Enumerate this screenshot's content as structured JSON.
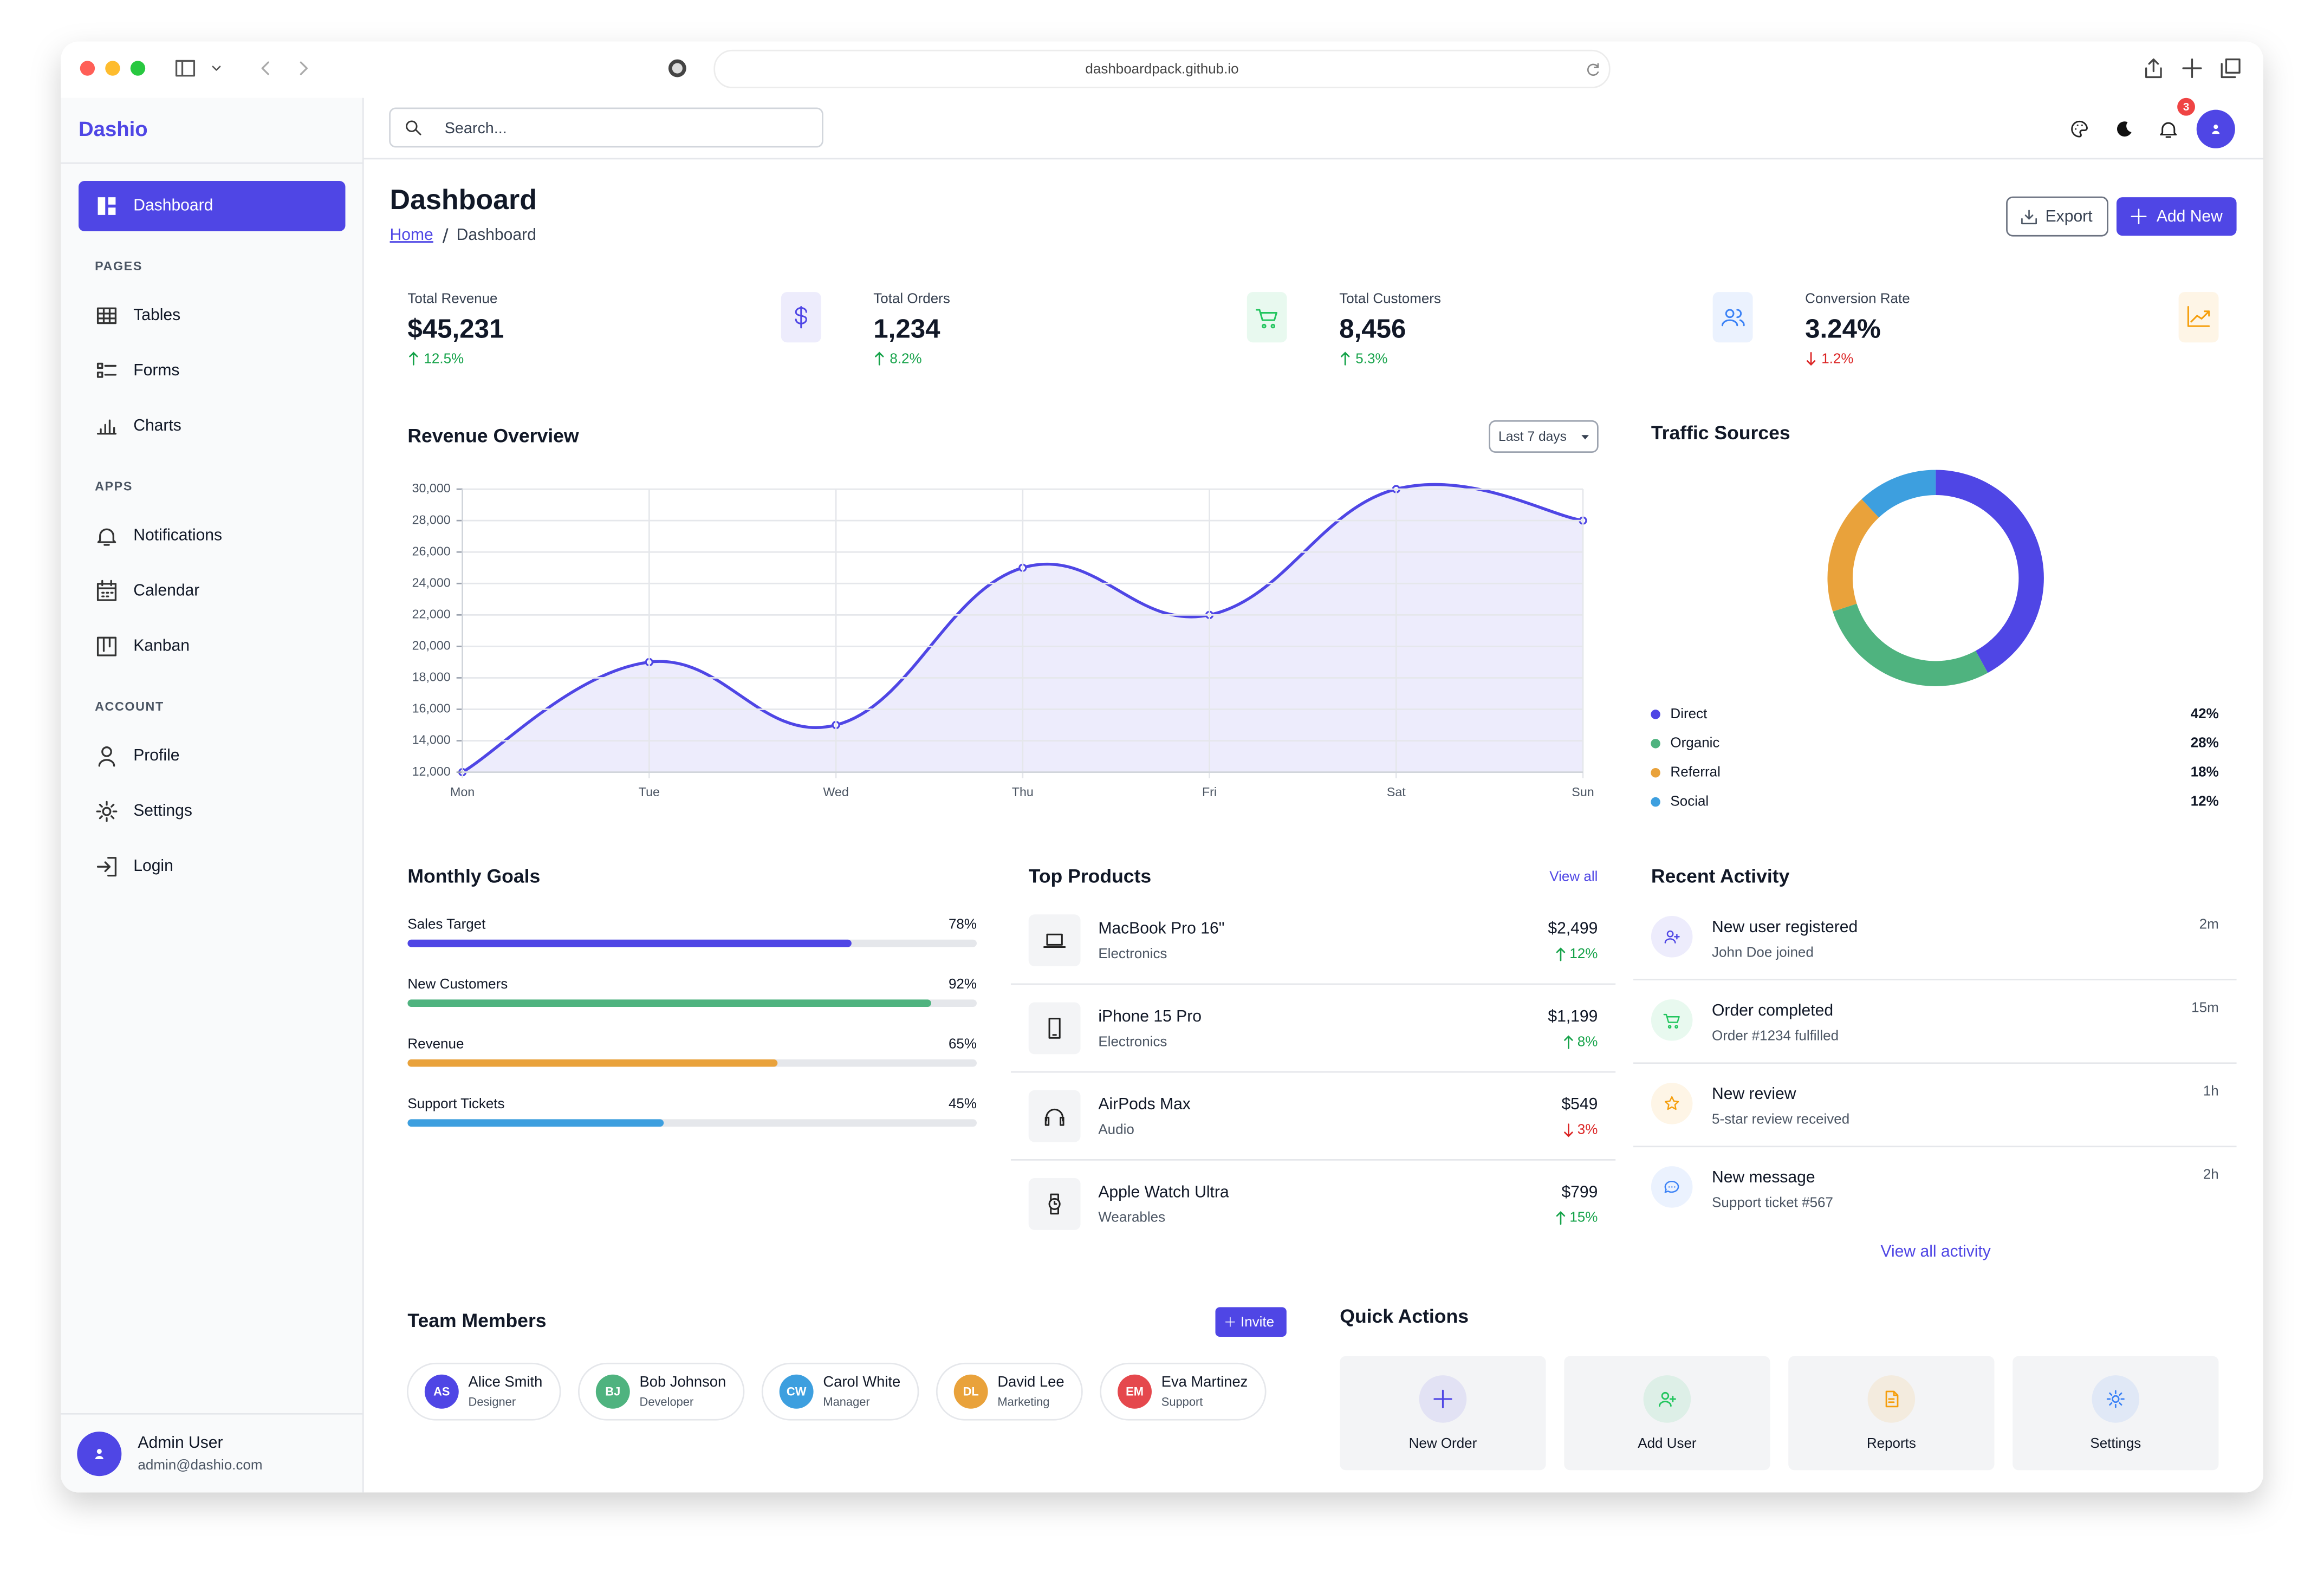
{
  "browser": {
    "url": "dashboardpack.github.io"
  },
  "sidebar": {
    "brand": "Dashio",
    "sections": [
      {
        "items": [
          "Dashboard"
        ]
      },
      {
        "label": "PAGES",
        "items": [
          "Tables",
          "Forms",
          "Charts"
        ]
      },
      {
        "label": "APPS",
        "items": [
          "Notifications",
          "Calendar",
          "Kanban"
        ]
      },
      {
        "label": "ACCOUNT",
        "items": [
          "Profile",
          "Settings",
          "Login"
        ]
      }
    ],
    "user": {
      "name": "Admin User",
      "email": "admin@dashio.com"
    }
  },
  "topbar": {
    "search_placeholder": "Search...",
    "notification_count": 3
  },
  "header": {
    "title": "Dashboard",
    "breadcrumb": [
      "Home",
      "Dashboard"
    ],
    "buttons": [
      "Export",
      "Add New"
    ]
  },
  "stats": [
    {
      "label": "Total Revenue",
      "value": "$45,231",
      "change": 12.5,
      "change_label": "12.5%",
      "color": "#4f46e5"
    },
    {
      "label": "Total Orders",
      "value": "1,234",
      "change": 8.2,
      "change_label": "8.2%",
      "color": "#22c55e"
    },
    {
      "label": "Total Customers",
      "value": "8,456",
      "change": 5.3,
      "change_label": "5.3%",
      "color": "#3b82f6"
    },
    {
      "label": "Conversion Rate",
      "value": "3.24%",
      "change": -1.2,
      "change_label": "1.2%",
      "color": "#f59e0b"
    }
  ],
  "chart_data": [
    {
      "type": "line",
      "title": "Revenue Overview",
      "filter": "Last 7 days",
      "categories": [
        "Mon",
        "Tue",
        "Wed",
        "Thu",
        "Fri",
        "Sat",
        "Sun"
      ],
      "values": [
        12000,
        19000,
        15000,
        25000,
        22000,
        30000,
        28000
      ],
      "color": "#4f46e5",
      "ylim": [
        12000,
        30000
      ],
      "yticks": [
        {
          "value": 12000,
          "label": "12,000"
        },
        {
          "value": 14000,
          "label": "14,000"
        },
        {
          "value": 16000,
          "label": "16,000"
        },
        {
          "value": 18000,
          "label": "18,000"
        },
        {
          "value": 20000,
          "label": "20,000"
        },
        {
          "value": 22000,
          "label": "22,000"
        },
        {
          "value": 24000,
          "label": "24,000"
        },
        {
          "value": 26000,
          "label": "26,000"
        },
        {
          "value": 28000,
          "label": "28,000"
        },
        {
          "value": 30000,
          "label": "30,000"
        }
      ],
      "grid": true
    },
    {
      "type": "pie",
      "title": "Traffic Sources",
      "categories": [
        "Direct",
        "Organic",
        "Referral",
        "Social"
      ],
      "values": [
        42,
        28,
        18,
        12
      ],
      "value_labels": [
        "42%",
        "28%",
        "18%",
        "12%"
      ],
      "colors": [
        "#4f46e5",
        "#4fb37f",
        "#e9a23b",
        "#3d9fdf"
      ],
      "legend": "bottom"
    }
  ],
  "goals": {
    "title": "Monthly Goals",
    "items": [
      {
        "label": "Sales Target",
        "value": 78,
        "value_label": "78%",
        "color": "#4f46e5"
      },
      {
        "label": "New Customers",
        "value": 92,
        "value_label": "92%",
        "color": "#4fb37f"
      },
      {
        "label": "Revenue",
        "value": 65,
        "value_label": "65%",
        "color": "#e9a23b"
      },
      {
        "label": "Support Tickets",
        "value": 45,
        "value_label": "45%",
        "color": "#3d9fdf"
      }
    ]
  },
  "products": {
    "title": "Top Products",
    "action": "View all",
    "items": [
      {
        "name": "MacBook Pro 16\"",
        "category": "Electronics",
        "price": "$2,499",
        "change": 12,
        "change_label": "12%"
      },
      {
        "name": "iPhone 15 Pro",
        "category": "Electronics",
        "price": "$1,199",
        "change": 8,
        "change_label": "8%"
      },
      {
        "name": "AirPods Max",
        "category": "Audio",
        "price": "$549",
        "change": -3,
        "change_label": "3%"
      },
      {
        "name": "Apple Watch Ultra",
        "category": "Wearables",
        "price": "$799",
        "change": 15,
        "change_label": "15%"
      }
    ]
  },
  "activity": {
    "title": "Recent Activity",
    "action": "View all activity",
    "items": [
      {
        "title": "New user registered",
        "detail": "John Doe joined",
        "time": "2m",
        "color": "#4f46e5"
      },
      {
        "title": "Order completed",
        "detail": "Order #1234 fulfilled",
        "time": "15m",
        "color": "#22c55e"
      },
      {
        "title": "New review",
        "detail": "5-star review received",
        "time": "1h",
        "color": "#f59e0b"
      },
      {
        "title": "New message",
        "detail": "Support ticket #567",
        "time": "2h",
        "color": "#3b82f6"
      }
    ]
  },
  "team": {
    "title": "Team Members",
    "action": "Invite",
    "members": [
      {
        "initials": "AS",
        "name": "Alice Smith",
        "role": "Designer",
        "color": "#4f46e5"
      },
      {
        "initials": "BJ",
        "name": "Bob Johnson",
        "role": "Developer",
        "color": "#4fb37f"
      },
      {
        "initials": "CW",
        "name": "Carol White",
        "role": "Manager",
        "color": "#3d9fdf"
      },
      {
        "initials": "DL",
        "name": "David Lee",
        "role": "Marketing",
        "color": "#e9a23b"
      },
      {
        "initials": "EM",
        "name": "Eva Martinez",
        "role": "Support",
        "color": "#e5484d"
      }
    ]
  },
  "quick_actions": {
    "title": "Quick Actions",
    "items": [
      {
        "label": "New Order",
        "color": "#4f46e5"
      },
      {
        "label": "Add User",
        "color": "#22c55e"
      },
      {
        "label": "Reports",
        "color": "#f59e0b"
      },
      {
        "label": "Settings",
        "color": "#3b82f6"
      }
    ]
  }
}
